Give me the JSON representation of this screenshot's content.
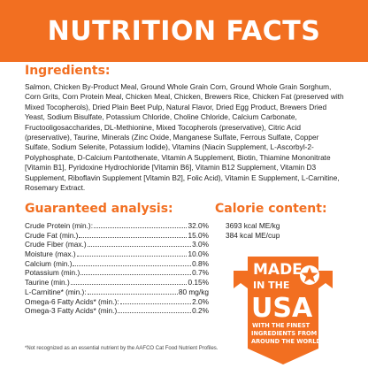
{
  "header": {
    "title": "NUTRITION FACTS"
  },
  "ingredients": {
    "title": "Ingredients:",
    "text": "Salmon, Chicken By-Product Meal, Ground Whole Grain Corn, Ground Whole Grain Sorghum, Corn Grits, Corn Protein Meal, Chicken Meal, Chicken, Brewers Rice, Chicken Fat (preserved with Mixed Tocopherols), Dried Plain Beet Pulp, Natural Flavor, Dried Egg Product, Brewers Dried Yeast, Sodium Bisulfate, Potassium Chloride, Choline Chloride, Calcium Carbonate, Fructooligosaccharides, DL-Methionine, Mixed Tocopherols (preservative), Citric Acid (preservative), Taurine, Minerals (Zinc Oxide, Manganese Sulfate, Ferrous Sulfate, Copper Sulfate, Sodium Selenite, Potassium Iodide), Vitamins (Niacin Supplement, L-Ascorbyl-2-Polyphosphate, D-Calcium Pantothenate, Vitamin A Supplement, Biotin, Thiamine Mononitrate [Vitamin B1], Pyridoxine Hydrochloride [Vitamin B6], Vitamin B12 Supplement, Vitamin D3 Supplement, Riboflavin Supplement [Vitamin B2], Folic Acid), Vitamin E Supplement, L-Carnitine, Rosemary Extract."
  },
  "analysis": {
    "title": "Guaranteed analysis:",
    "rows": [
      {
        "label": "Crude Protein (min.):",
        "value": "32.0%"
      },
      {
        "label": "Crude Fat (min.)",
        "value": "15.0%"
      },
      {
        "label": "Crude Fiber (max.)",
        "value": "3.0%"
      },
      {
        "label": "Moisture (max.)",
        "value": "10.0%"
      },
      {
        "label": "Calcium (min.)",
        "value": "0.8%"
      },
      {
        "label": "Potassium (min.)",
        "value": "0.7%"
      },
      {
        "label": "Taurine (min.)",
        "value": "0.15%"
      },
      {
        "label": "L-Carnitine* (min.):",
        "value": "80 mg/kg"
      },
      {
        "label": "Omega-6 Fatty Acids* (min.):",
        "value": "2.0%"
      },
      {
        "label": "Omega-3 Fatty Acids* (min.)",
        "value": "0.2%"
      }
    ]
  },
  "calorie": {
    "title": "Calorie content:",
    "lines": [
      "3693 kcal ME/kg",
      "384 kcal ME/cup"
    ]
  },
  "footnote": "*Not recognized as an essential nutrient by the AAFCO Cat Food Nutrient Profiles.",
  "badge": {
    "line1": "MADE",
    "line2": "IN THE",
    "line3": "USA",
    "line4": "WITH THE FINEST",
    "line5": "INGREDIENTS FROM",
    "line6": "AROUND THE WORLD"
  },
  "colors": {
    "accent": "#f26f21",
    "text": "#222222"
  }
}
